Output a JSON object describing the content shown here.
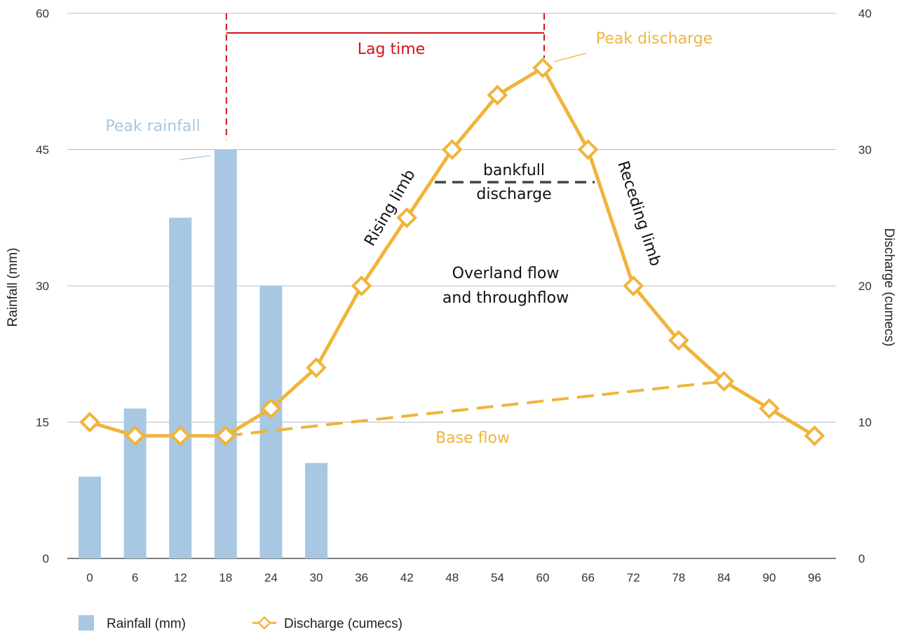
{
  "chart_data": {
    "type": "bar+line",
    "x": [
      0,
      6,
      12,
      18,
      24,
      30,
      36,
      42,
      48,
      54,
      60,
      66,
      72,
      78,
      84,
      90,
      96
    ],
    "series": [
      {
        "name": "Rainfall (mm)",
        "type": "bar",
        "axis": "left",
        "color": "#a7c7e3",
        "values": [
          9,
          16.5,
          37.5,
          45,
          30,
          10.5,
          null,
          null,
          null,
          null,
          null,
          null,
          null,
          null,
          null,
          null,
          null
        ]
      },
      {
        "name": "Discharge (cumecs)",
        "type": "line",
        "axis": "right",
        "color": "#f0b43c",
        "marker": "diamond",
        "values": [
          10,
          9,
          9,
          9,
          11,
          14,
          20,
          25,
          30,
          34,
          36,
          30,
          20,
          16,
          13,
          11,
          9
        ]
      }
    ],
    "baseflow": {
      "color": "#f0b43c",
      "from": {
        "x": 18,
        "y": 9
      },
      "to": {
        "x": 84,
        "y": 13
      }
    },
    "left_axis": {
      "label": "Rainfall (mm)",
      "ylim": [
        0,
        60
      ],
      "ticks": [
        0,
        15,
        30,
        45,
        60
      ]
    },
    "right_axis": {
      "label": "Discharge (cumecs)",
      "ylim": [
        0,
        40
      ],
      "ticks": [
        0,
        10,
        20,
        30,
        40
      ]
    },
    "grid": true,
    "legend_position": "bottom-left",
    "annotations": {
      "peak_rainfall": "Peak rainfall",
      "peak_discharge": "Peak discharge",
      "lag_time": "Lag time",
      "rising_limb": "Rising limb",
      "receding_limb": "Receding limb",
      "bankfull_1": "bankfull",
      "bankfull_2": "discharge",
      "overland_1": "Overland flow",
      "overland_2": "and throughflow",
      "base_flow": "Base flow"
    },
    "annotation_colors": {
      "lag": "#d0121b",
      "peak_rainfall": "#a7c7e3",
      "accent": "#f0b43c",
      "text": "#111111",
      "bankfull_line": "#444444"
    }
  }
}
